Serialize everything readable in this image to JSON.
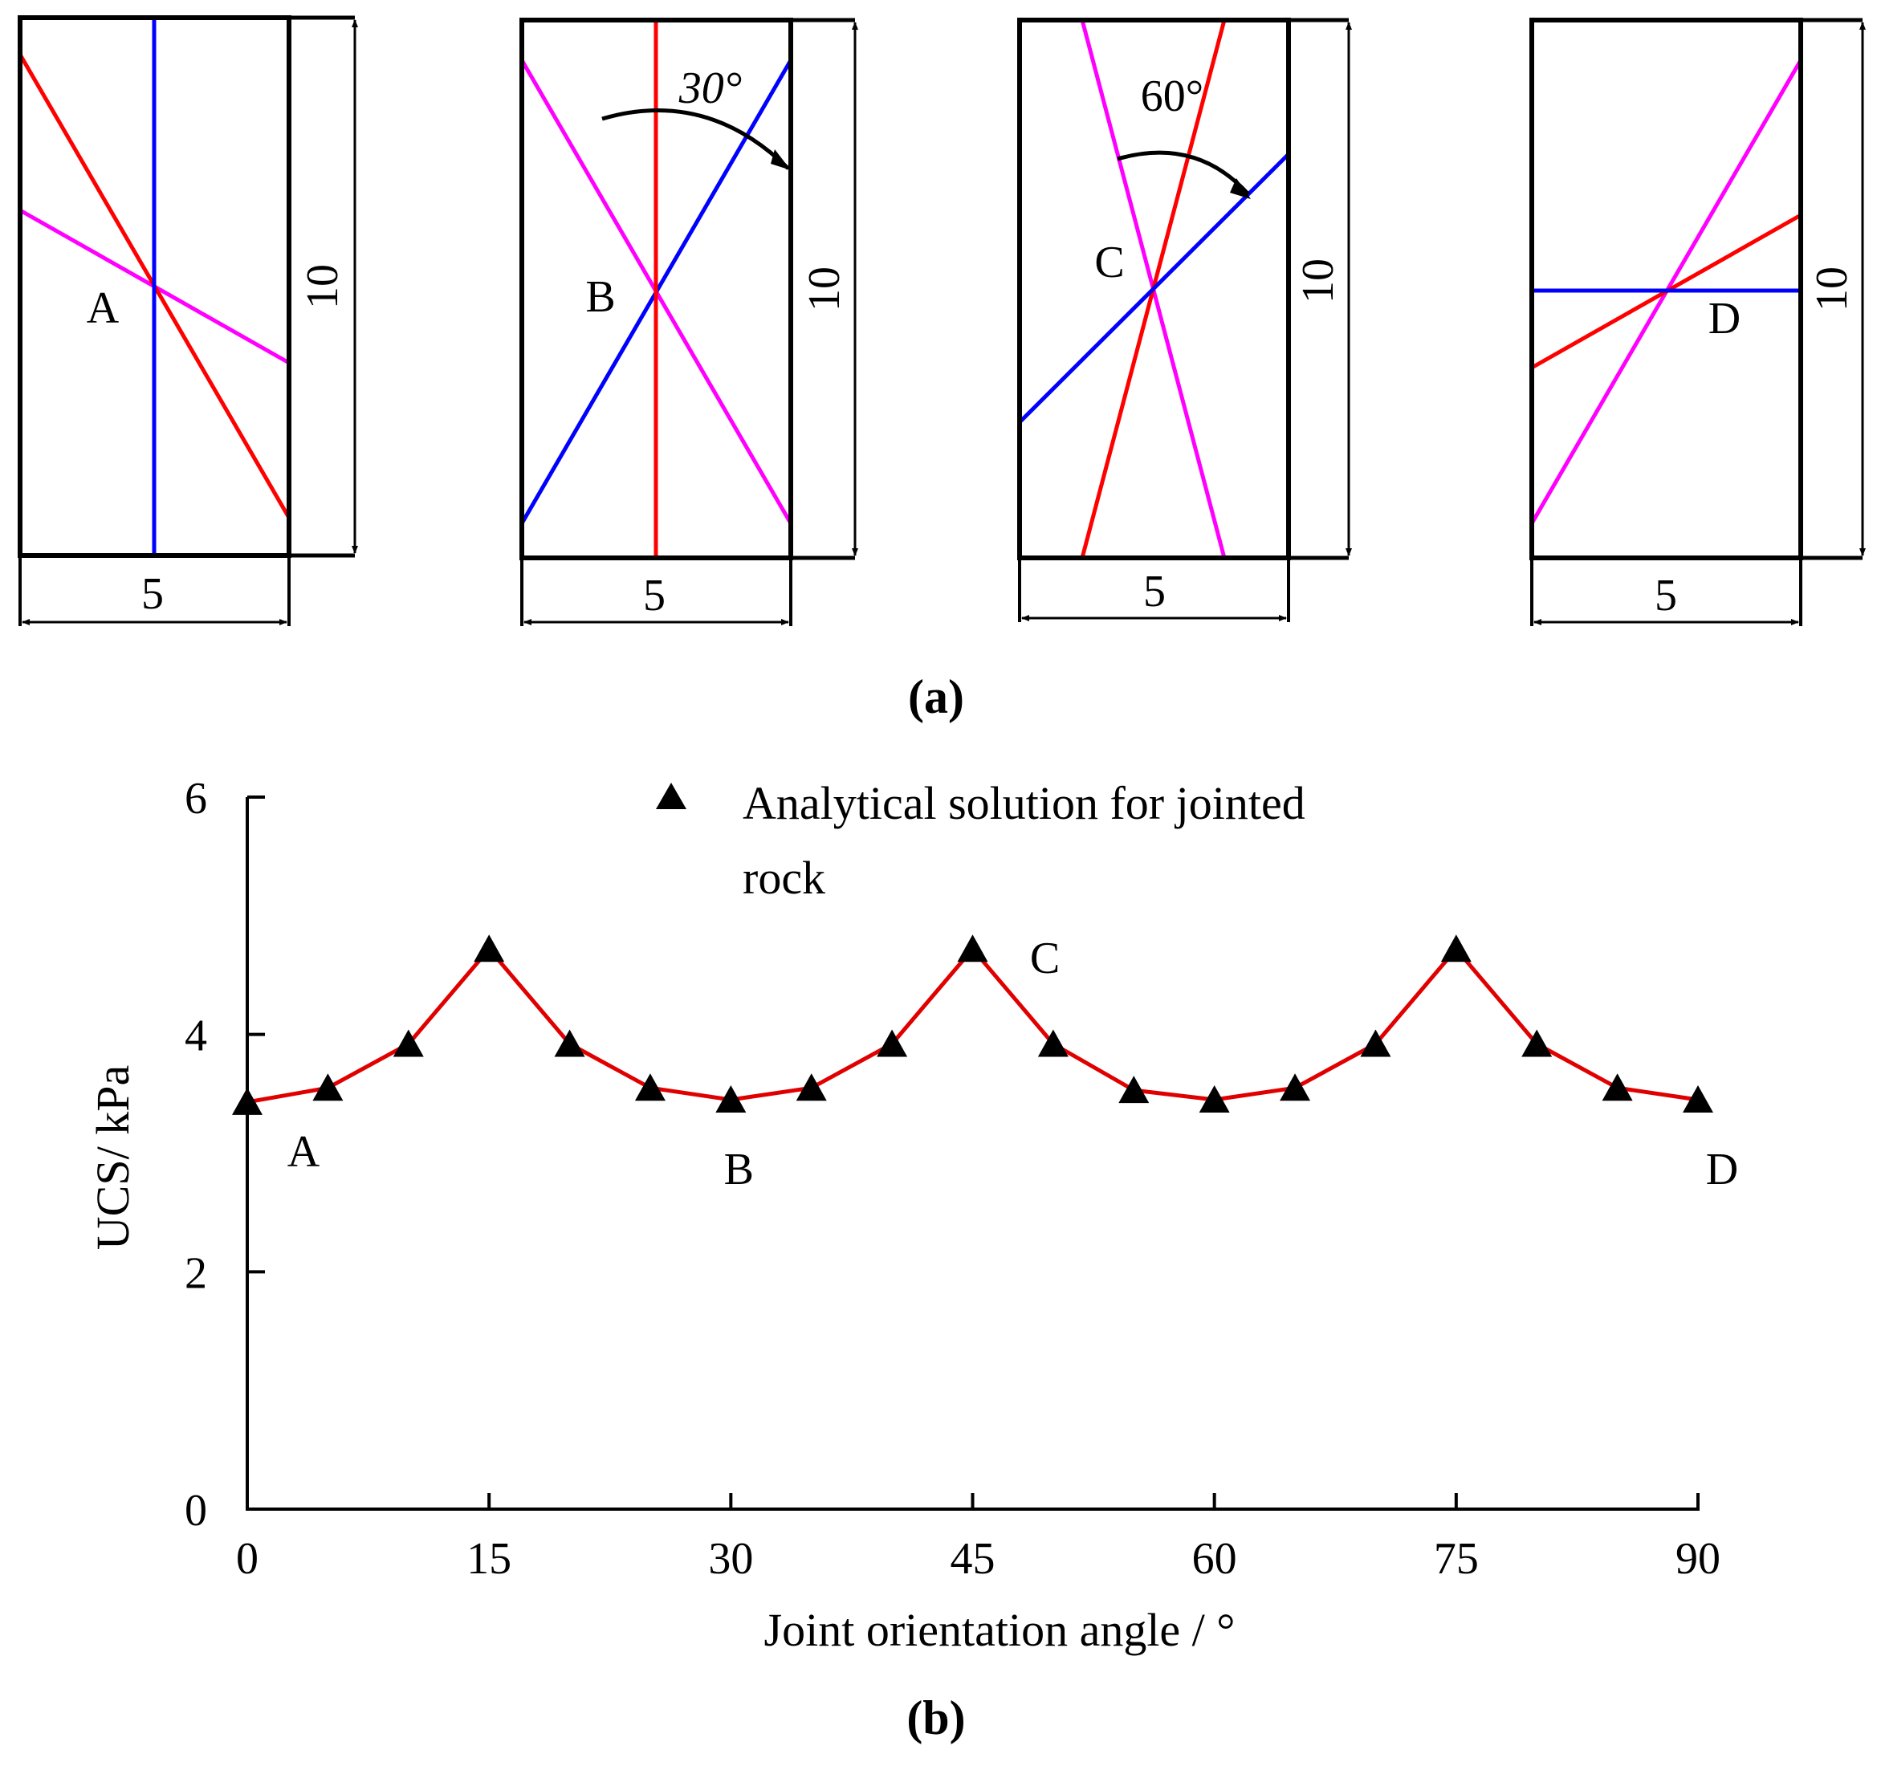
{
  "figure": {
    "panel_a_label": "(a)",
    "panel_b_label": "(b)"
  },
  "diagrams": {
    "width_label": "5",
    "height_label": "10",
    "panels": [
      {
        "point": "A",
        "angle_label": ""
      },
      {
        "point": "B",
        "angle_label": "30°"
      },
      {
        "point": "C",
        "angle_label": "60°"
      },
      {
        "point": "D",
        "angle_label": ""
      }
    ],
    "colors": {
      "joint1": "#ff0000",
      "joint2": "#0000ff",
      "joint3": "#ff00ff",
      "frame": "#000000"
    }
  },
  "chart_data": {
    "type": "line",
    "title": "",
    "xlabel": "Joint orientation angle / °",
    "ylabel": "UCS/ kPa",
    "xlim": [
      0,
      90
    ],
    "ylim": [
      0,
      6
    ],
    "xticks": [
      0,
      15,
      30,
      45,
      60,
      75,
      90
    ],
    "yticks": [
      0,
      2,
      4,
      6
    ],
    "grid": false,
    "legend_position": "top",
    "series": [
      {
        "name": "Analytical solution for jointed rock",
        "marker": "triangle",
        "color": "#000000",
        "line_color": "#e00000",
        "x": [
          0,
          5,
          10,
          15,
          20,
          25,
          30,
          35,
          40,
          45,
          50,
          55,
          60,
          65,
          70,
          75,
          80,
          85,
          90
        ],
        "y": [
          3.43,
          3.55,
          3.92,
          4.72,
          3.92,
          3.55,
          3.45,
          3.55,
          3.92,
          4.72,
          3.92,
          3.53,
          3.45,
          3.55,
          3.92,
          4.72,
          3.92,
          3.55,
          3.45
        ]
      }
    ],
    "annotations": [
      {
        "label": "A",
        "x": 0,
        "y": 3.43
      },
      {
        "label": "B",
        "x": 30,
        "y": 3.45
      },
      {
        "label": "C",
        "x": 45,
        "y": 4.72
      },
      {
        "label": "D",
        "x": 90,
        "y": 3.45
      }
    ]
  }
}
